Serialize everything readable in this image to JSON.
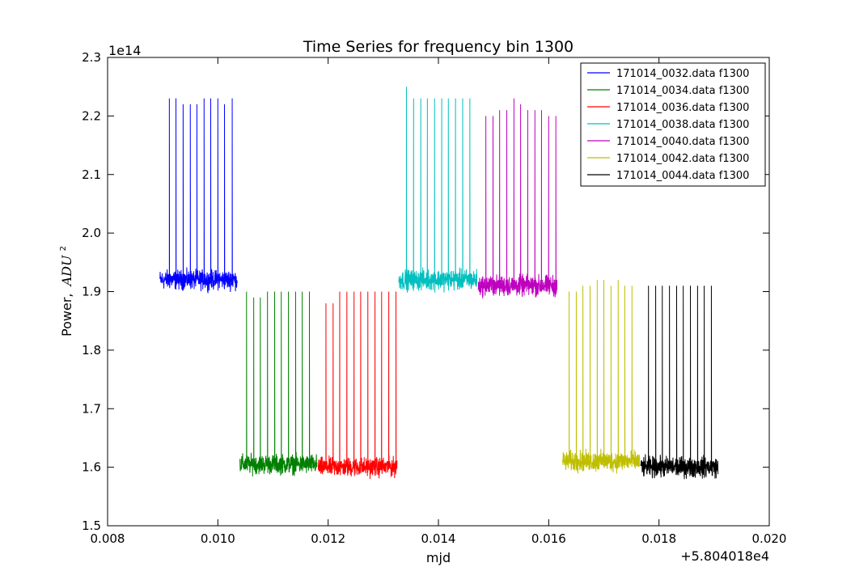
{
  "chart_data": {
    "type": "line",
    "title": "Time Series for frequency bin 1300",
    "xlabel": "mjd",
    "ylabel_text": "Power,",
    "ylabel_unit": "ADU",
    "ylabel_unit_exp": "2",
    "x_offset_label": "+5.804018e4",
    "y_multiplier_label": "1e14",
    "xlim": [
      0.008,
      0.02
    ],
    "ylim": [
      1.5,
      2.3
    ],
    "xticks": [
      0.008,
      0.01,
      0.012,
      0.014,
      0.016,
      0.018,
      0.02
    ],
    "xtick_labels": [
      "0.008",
      "0.010",
      "0.012",
      "0.014",
      "0.016",
      "0.018",
      "0.020"
    ],
    "yticks": [
      1.5,
      1.6,
      1.7,
      1.8,
      1.9,
      2.0,
      2.1,
      2.2,
      2.3
    ],
    "ytick_labels": [
      "1.5",
      "1.6",
      "1.7",
      "1.8",
      "1.9",
      "2.0",
      "2.1",
      "2.2",
      "2.3"
    ],
    "grid": false,
    "legend_position": "top-right",
    "series": [
      {
        "name": "171014_0032.data f1300",
        "color": "#0000ff",
        "x_start": 0.00895,
        "x_end": 0.01035,
        "baseline": 1.92,
        "noise": 0.015,
        "spikes": [
          0.00912,
          0.00924,
          0.00937,
          0.0095,
          0.00962,
          0.00975,
          0.00987,
          0.01,
          0.01012,
          0.01026
        ],
        "spike_peaks": [
          2.23,
          2.23,
          2.22,
          2.22,
          2.22,
          2.23,
          2.23,
          2.23,
          2.22,
          2.23
        ]
      },
      {
        "name": "171014_0034.data f1300",
        "color": "#008000",
        "x_start": 0.0104,
        "x_end": 0.0118,
        "baseline": 1.605,
        "noise": 0.015,
        "spikes": [
          0.01052,
          0.01065,
          0.01077,
          0.0109,
          0.01103,
          0.01115,
          0.01128,
          0.01141,
          0.01153,
          0.01166
        ],
        "spike_peaks": [
          1.9,
          1.89,
          1.89,
          1.9,
          1.9,
          1.9,
          1.9,
          1.9,
          1.9,
          1.9
        ]
      },
      {
        "name": "171014_0036.data f1300",
        "color": "#ff0000",
        "x_start": 0.01182,
        "x_end": 0.01325,
        "baseline": 1.6,
        "noise": 0.015,
        "spikes": [
          0.01196,
          0.01209,
          0.01221,
          0.01234,
          0.01247,
          0.01259,
          0.01272,
          0.01285,
          0.01297,
          0.0131,
          0.01323
        ],
        "spike_peaks": [
          1.88,
          1.88,
          1.9,
          1.9,
          1.9,
          1.9,
          1.9,
          1.9,
          1.9,
          1.9,
          1.9
        ]
      },
      {
        "name": "171014_0038.data f1300",
        "color": "#00bfbf",
        "x_start": 0.01328,
        "x_end": 0.0147,
        "baseline": 1.92,
        "noise": 0.016,
        "spikes": [
          0.01342,
          0.01355,
          0.01368,
          0.0138,
          0.01393,
          0.01406,
          0.01418,
          0.01431,
          0.01444,
          0.01457
        ],
        "spike_peaks": [
          2.25,
          2.23,
          2.23,
          2.23,
          2.23,
          2.23,
          2.23,
          2.23,
          2.23,
          2.23
        ]
      },
      {
        "name": "171014_0040.data f1300",
        "color": "#bf00bf",
        "x_start": 0.01472,
        "x_end": 0.01615,
        "baseline": 1.91,
        "noise": 0.016,
        "spikes": [
          0.01486,
          0.01499,
          0.01511,
          0.01524,
          0.01537,
          0.01549,
          0.01562,
          0.01575,
          0.01587,
          0.016,
          0.01613
        ],
        "spike_peaks": [
          2.2,
          2.2,
          2.21,
          2.21,
          2.23,
          2.22,
          2.21,
          2.21,
          2.21,
          2.2,
          2.2
        ]
      },
      {
        "name": "171014_0042.data f1300",
        "color": "#bfbf00",
        "x_start": 0.01625,
        "x_end": 0.01765,
        "baseline": 1.61,
        "noise": 0.016,
        "spikes": [
          0.01637,
          0.0165,
          0.01662,
          0.01675,
          0.01688,
          0.017,
          0.01713,
          0.01726,
          0.01738,
          0.01751
        ],
        "spike_peaks": [
          1.9,
          1.9,
          1.91,
          1.91,
          1.92,
          1.92,
          1.91,
          1.92,
          1.91,
          1.91
        ]
      },
      {
        "name": "171014_0044.data f1300",
        "color": "#000000",
        "x_start": 0.01767,
        "x_end": 0.01907,
        "baseline": 1.6,
        "noise": 0.016,
        "spikes": [
          0.01781,
          0.01794,
          0.01806,
          0.01819,
          0.01832,
          0.01844,
          0.01857,
          0.0187,
          0.01882,
          0.01895
        ],
        "spike_peaks": [
          1.91,
          1.91,
          1.91,
          1.91,
          1.91,
          1.91,
          1.91,
          1.91,
          1.91,
          1.91
        ]
      }
    ]
  }
}
